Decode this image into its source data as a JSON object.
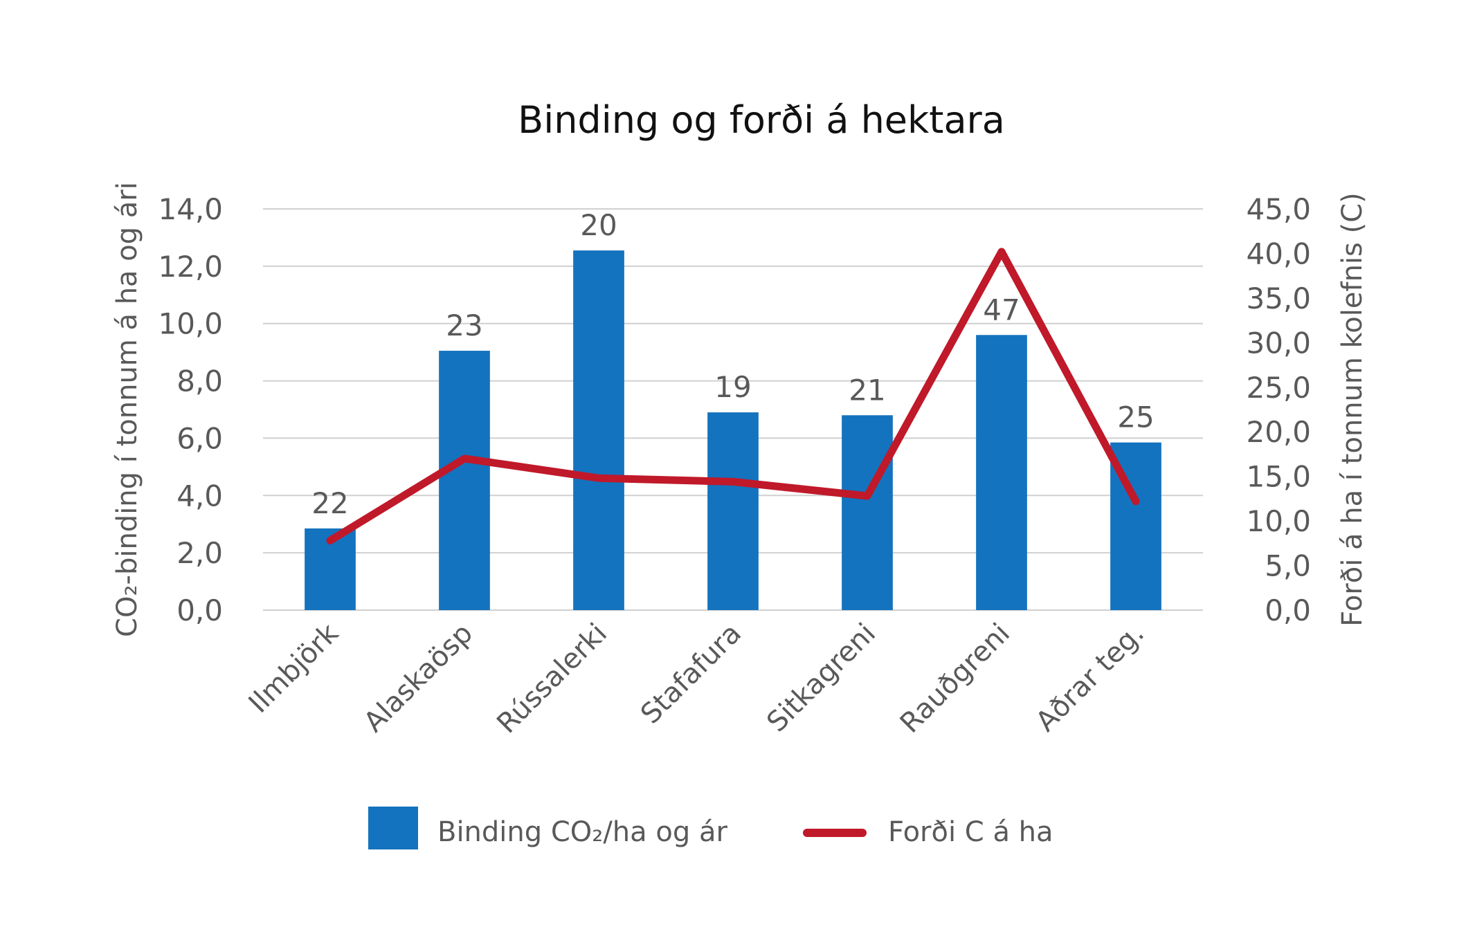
{
  "chart_data": {
    "type": "bar",
    "title": "Binding og forði á hektara",
    "categories": [
      "Ilmbjörk",
      "Alaskaösp",
      "Rússalerki",
      "Stafafura",
      "Sitkagreni",
      "Rauðgreni",
      "Aðrar teg."
    ],
    "series": [
      {
        "name": "Binding CO₂/ha og ár",
        "type": "bar",
        "axis": "left",
        "color": "#1473be",
        "values": [
          2.85,
          9.05,
          12.55,
          6.9,
          6.8,
          9.6,
          5.85
        ],
        "data_labels": [
          "22",
          "23",
          "20",
          "19",
          "21",
          "47",
          "25"
        ]
      },
      {
        "name": "Forði C á ha",
        "type": "line",
        "axis": "right",
        "color": "#c0192a",
        "values": [
          7.8,
          17.0,
          14.8,
          14.4,
          12.8,
          40.2,
          12.2
        ]
      }
    ],
    "ylabel": "CO₂-binding í tonnum á ha og ári",
    "y2label": "Forði á ha í tonnum kolefnis (C)",
    "ylim": [
      0,
      14
    ],
    "y2lim": [
      0,
      45
    ],
    "yticks": [
      "0,0",
      "2,0",
      "4,0",
      "6,0",
      "8,0",
      "10,0",
      "12,0",
      "14,0"
    ],
    "y2ticks": [
      "0,0",
      "5,0",
      "10,0",
      "15,0",
      "20,0",
      "25,0",
      "30,0",
      "35,0",
      "40,0",
      "45,0"
    ],
    "grid": true,
    "legend_position": "bottom"
  }
}
